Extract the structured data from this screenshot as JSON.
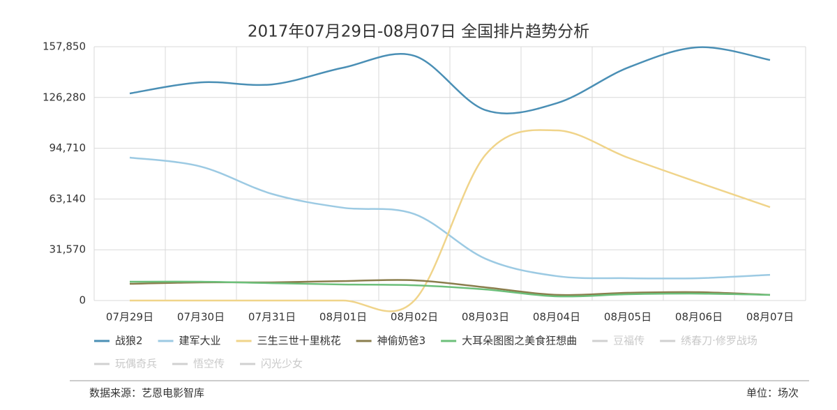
{
  "chart_data": {
    "type": "line",
    "title": "2017年07月29日-08月07日 全国排片趋势分析",
    "categories": [
      "07月29日",
      "07月30日",
      "07月31日",
      "08月01日",
      "08月02日",
      "08月03日",
      "08月04日",
      "08月05日",
      "08月06日",
      "08月07日"
    ],
    "ylim": [
      0,
      157850
    ],
    "yticks": [
      0,
      {
        "value": 31570,
        "label": "31,570"
      },
      {
        "value": 63140,
        "label": "63,140"
      },
      {
        "value": 94710,
        "label": "94,710"
      },
      {
        "value": 126280,
        "label": "126,280"
      },
      {
        "value": 157850,
        "label": "157,850"
      }
    ],
    "grid": true,
    "series": [
      {
        "name": "战狼2",
        "color": "#4a8fb5",
        "values": [
          128800,
          135700,
          134400,
          144800,
          152200,
          118400,
          122700,
          144800,
          157500,
          149600
        ]
      },
      {
        "name": "建军大业",
        "color": "#9ccae3",
        "values": [
          88900,
          83300,
          66300,
          57700,
          53800,
          26000,
          15200,
          13900,
          13900,
          16000
        ]
      },
      {
        "name": "三生三世十里桃花",
        "color": "#f0d48a",
        "values": [
          0,
          0,
          0,
          0,
          0,
          90600,
          105800,
          88900,
          73300,
          58100
        ]
      },
      {
        "name": "神偷奶爸3",
        "color": "#8a7d4c",
        "values": [
          10400,
          11300,
          11300,
          12100,
          12600,
          8200,
          3500,
          4800,
          5200,
          3500
        ]
      },
      {
        "name": "大耳朵图图之美食狂想曲",
        "color": "#6cbf7a",
        "values": [
          11700,
          11700,
          10800,
          10000,
          9500,
          6900,
          2600,
          3900,
          4300,
          3500
        ]
      }
    ],
    "legend_hidden": [
      "豆福传",
      "绣春刀·修罗战场",
      "玩偶奇兵",
      "悟空传",
      "闪光少女"
    ],
    "source": "数据来源：艺恩电影智库",
    "unit": "单位：场次"
  }
}
